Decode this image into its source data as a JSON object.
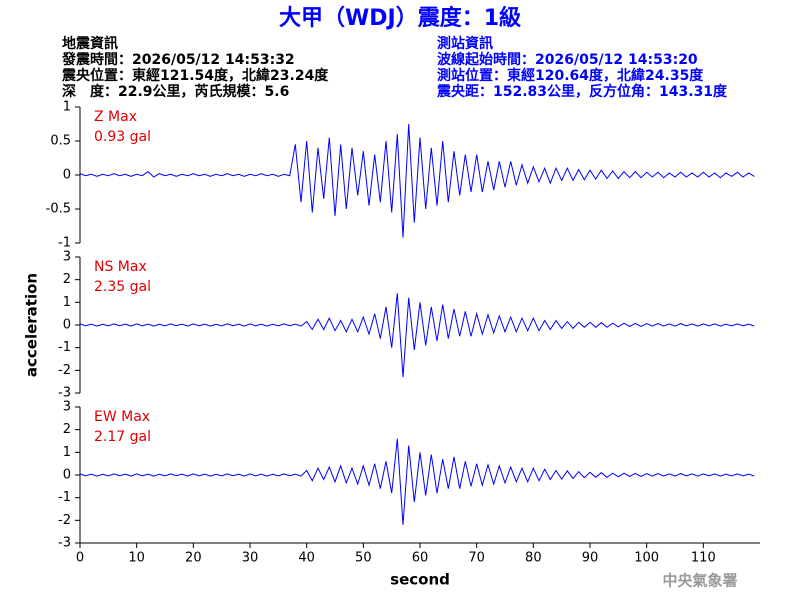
{
  "header": {
    "title": "大甲（WDJ）震度：1級",
    "quake": [
      "地震資訊",
      "發震時間：2026/05/12 14:53:32",
      "震央位置：東經121.54度，北緯23.24度",
      "深　度：22.9公里，芮氏規模：5.6"
    ],
    "station": [
      "測站資訊",
      "波線起始時間：2026/05/12 14:53:20",
      "測站位置：東經120.64度，北緯24.35度",
      "震央距：152.83公里，反方位角：143.31度"
    ]
  },
  "chart_data": [
    {
      "type": "line",
      "max_label": "Z Max",
      "max_value_label": "0.93 gal",
      "color": "#0000ff",
      "xlim": [
        0,
        120
      ],
      "ylim": [
        -1,
        1
      ],
      "yticks": [
        1,
        0.5,
        0,
        -0.5,
        -1
      ],
      "x": [
        0,
        1,
        2,
        3,
        4,
        5,
        6,
        7,
        8,
        9,
        10,
        11,
        12,
        13,
        14,
        15,
        16,
        17,
        18,
        19,
        20,
        21,
        22,
        23,
        24,
        25,
        26,
        27,
        28,
        29,
        30,
        31,
        32,
        33,
        34,
        35,
        36,
        37,
        38,
        39,
        40,
        41,
        42,
        43,
        44,
        45,
        46,
        47,
        48,
        49,
        50,
        51,
        52,
        53,
        54,
        55,
        56,
        57,
        58,
        59,
        60,
        61,
        62,
        63,
        64,
        65,
        66,
        67,
        68,
        69,
        70,
        71,
        72,
        73,
        74,
        75,
        76,
        77,
        78,
        79,
        80,
        81,
        82,
        83,
        84,
        85,
        86,
        87,
        88,
        89,
        90,
        91,
        92,
        93,
        94,
        95,
        96,
        97,
        98,
        99,
        100,
        101,
        102,
        103,
        104,
        105,
        106,
        107,
        108,
        109,
        110,
        111,
        112,
        113,
        114,
        115,
        116,
        117,
        118,
        119
      ],
      "values": [
        0.02,
        -0.01,
        0.01,
        -0.02,
        0.01,
        -0.01,
        0.02,
        -0.01,
        0.01,
        -0.02,
        0.01,
        -0.01,
        0.05,
        -0.03,
        0.02,
        -0.01,
        0.01,
        -0.02,
        0.01,
        -0.01,
        0.02,
        -0.01,
        0.01,
        -0.02,
        0.01,
        -0.01,
        0.02,
        -0.01,
        0.01,
        -0.02,
        0.01,
        -0.01,
        0.02,
        -0.01,
        0.01,
        -0.02,
        0.01,
        -0.01,
        0.45,
        -0.4,
        0.5,
        -0.55,
        0.4,
        -0.35,
        0.55,
        -0.6,
        0.45,
        -0.5,
        0.4,
        -0.3,
        0.35,
        -0.45,
        0.3,
        -0.4,
        0.5,
        -0.55,
        0.6,
        -0.92,
        0.75,
        -0.7,
        0.55,
        -0.5,
        0.4,
        -0.45,
        0.5,
        -0.4,
        0.35,
        -0.3,
        0.3,
        -0.25,
        0.3,
        -0.25,
        0.2,
        -0.22,
        0.2,
        -0.18,
        0.2,
        -0.15,
        0.15,
        -0.12,
        0.12,
        -0.1,
        0.1,
        -0.12,
        0.1,
        -0.08,
        0.1,
        -0.08,
        0.08,
        -0.07,
        0.07,
        -0.06,
        0.07,
        -0.05,
        0.06,
        -0.05,
        0.05,
        -0.04,
        0.05,
        -0.04,
        0.04,
        -0.03,
        0.04,
        -0.04,
        0.03,
        -0.03,
        0.04,
        -0.03,
        0.03,
        -0.03,
        0.04,
        -0.03,
        0.03,
        -0.04,
        0.03,
        -0.02,
        0.04,
        -0.03,
        0.03,
        -0.02
      ]
    },
    {
      "type": "line",
      "max_label": "NS Max",
      "max_value_label": "2.35 gal",
      "ylabel": "acceleration",
      "color": "#0000ff",
      "xlim": [
        0,
        120
      ],
      "ylim": [
        -3,
        3
      ],
      "yticks": [
        3,
        2,
        1,
        0,
        -1,
        -2,
        -3
      ],
      "x": [
        0,
        1,
        2,
        3,
        4,
        5,
        6,
        7,
        8,
        9,
        10,
        11,
        12,
        13,
        14,
        15,
        16,
        17,
        18,
        19,
        20,
        21,
        22,
        23,
        24,
        25,
        26,
        27,
        28,
        29,
        30,
        31,
        32,
        33,
        34,
        35,
        36,
        37,
        38,
        39,
        40,
        41,
        42,
        43,
        44,
        45,
        46,
        47,
        48,
        49,
        50,
        51,
        52,
        53,
        54,
        55,
        56,
        57,
        58,
        59,
        60,
        61,
        62,
        63,
        64,
        65,
        66,
        67,
        68,
        69,
        70,
        71,
        72,
        73,
        74,
        75,
        76,
        77,
        78,
        79,
        80,
        81,
        82,
        83,
        84,
        85,
        86,
        87,
        88,
        89,
        90,
        91,
        92,
        93,
        94,
        95,
        96,
        97,
        98,
        99,
        100,
        101,
        102,
        103,
        104,
        105,
        106,
        107,
        108,
        109,
        110,
        111,
        112,
        113,
        114,
        115,
        116,
        117,
        118,
        119
      ],
      "values": [
        0.05,
        -0.04,
        0.04,
        -0.05,
        0.03,
        -0.04,
        0.05,
        -0.03,
        0.04,
        -0.05,
        0.05,
        -0.04,
        0.04,
        -0.05,
        0.03,
        -0.04,
        0.05,
        -0.03,
        0.04,
        -0.05,
        0.05,
        -0.04,
        0.04,
        -0.05,
        0.03,
        -0.04,
        0.05,
        -0.03,
        0.04,
        -0.05,
        0.05,
        -0.04,
        0.04,
        -0.05,
        0.03,
        -0.04,
        0.05,
        -0.03,
        0.04,
        -0.05,
        0.15,
        -0.2,
        0.25,
        -0.2,
        0.3,
        -0.25,
        0.2,
        -0.3,
        0.25,
        -0.3,
        0.35,
        -0.4,
        0.5,
        -0.6,
        0.8,
        -1.0,
        1.4,
        -2.3,
        1.2,
        -1.1,
        1.0,
        -0.9,
        0.8,
        -0.7,
        0.9,
        -0.6,
        0.7,
        -0.5,
        0.6,
        -0.5,
        0.5,
        -0.4,
        0.45,
        -0.35,
        0.4,
        -0.3,
        0.35,
        -0.3,
        0.3,
        -0.25,
        0.3,
        -0.25,
        0.2,
        -0.2,
        0.2,
        -0.15,
        0.15,
        -0.15,
        0.12,
        -0.1,
        0.12,
        -0.1,
        0.1,
        -0.1,
        0.08,
        -0.08,
        0.08,
        -0.06,
        0.07,
        -0.06,
        0.06,
        -0.05,
        0.06,
        -0.05,
        0.05,
        -0.05,
        0.06,
        -0.04,
        0.05,
        -0.05,
        0.05,
        -0.04,
        0.05,
        -0.05,
        0.04,
        -0.04,
        0.05,
        -0.04,
        0.04,
        -0.05
      ]
    },
    {
      "type": "line",
      "max_label": "EW Max",
      "max_value_label": "2.17 gal",
      "xlabel": "second",
      "color": "#0000ff",
      "xlim": [
        0,
        120
      ],
      "ylim": [
        -3,
        3
      ],
      "yticks": [
        3,
        2,
        1,
        0,
        -1,
        -2,
        -3
      ],
      "xticks": [
        0,
        10,
        20,
        30,
        40,
        50,
        60,
        70,
        80,
        90,
        100,
        110
      ],
      "x": [
        0,
        1,
        2,
        3,
        4,
        5,
        6,
        7,
        8,
        9,
        10,
        11,
        12,
        13,
        14,
        15,
        16,
        17,
        18,
        19,
        20,
        21,
        22,
        23,
        24,
        25,
        26,
        27,
        28,
        29,
        30,
        31,
        32,
        33,
        34,
        35,
        36,
        37,
        38,
        39,
        40,
        41,
        42,
        43,
        44,
        45,
        46,
        47,
        48,
        49,
        50,
        51,
        52,
        53,
        54,
        55,
        56,
        57,
        58,
        59,
        60,
        61,
        62,
        63,
        64,
        65,
        66,
        67,
        68,
        69,
        70,
        71,
        72,
        73,
        74,
        75,
        76,
        77,
        78,
        79,
        80,
        81,
        82,
        83,
        84,
        85,
        86,
        87,
        88,
        89,
        90,
        91,
        92,
        93,
        94,
        95,
        96,
        97,
        98,
        99,
        100,
        101,
        102,
        103,
        104,
        105,
        106,
        107,
        108,
        109,
        110,
        111,
        112,
        113,
        114,
        115,
        116,
        117,
        118,
        119
      ],
      "values": [
        0.05,
        -0.04,
        0.04,
        -0.05,
        0.03,
        -0.04,
        0.05,
        -0.03,
        0.04,
        -0.05,
        0.05,
        -0.04,
        0.04,
        -0.05,
        0.03,
        -0.04,
        0.05,
        -0.03,
        0.04,
        -0.05,
        0.05,
        -0.04,
        0.04,
        -0.05,
        0.03,
        -0.04,
        0.05,
        -0.03,
        0.04,
        -0.05,
        0.05,
        -0.04,
        0.04,
        -0.05,
        0.03,
        -0.04,
        0.05,
        -0.03,
        0.04,
        -0.05,
        0.2,
        -0.25,
        0.3,
        -0.2,
        0.35,
        -0.3,
        0.4,
        -0.35,
        0.3,
        -0.4,
        0.4,
        -0.45,
        0.5,
        -0.6,
        0.6,
        -0.8,
        1.6,
        -2.2,
        1.3,
        -1.2,
        1.0,
        -0.9,
        0.9,
        -0.8,
        0.7,
        -0.6,
        0.8,
        -0.6,
        0.6,
        -0.5,
        0.5,
        -0.45,
        0.45,
        -0.4,
        0.4,
        -0.35,
        0.35,
        -0.3,
        0.3,
        -0.3,
        0.3,
        -0.25,
        0.25,
        -0.2,
        0.2,
        -0.18,
        0.18,
        -0.15,
        0.15,
        -0.12,
        0.12,
        -0.1,
        0.1,
        -0.1,
        0.08,
        -0.08,
        0.08,
        -0.06,
        0.07,
        -0.06,
        0.06,
        -0.05,
        0.06,
        -0.05,
        0.05,
        -0.05,
        0.06,
        -0.04,
        0.05,
        -0.05,
        0.05,
        -0.04,
        0.05,
        -0.05,
        0.04,
        -0.04,
        0.05,
        -0.04,
        0.04,
        -0.05
      ]
    }
  ],
  "agency": "中央氣象署"
}
